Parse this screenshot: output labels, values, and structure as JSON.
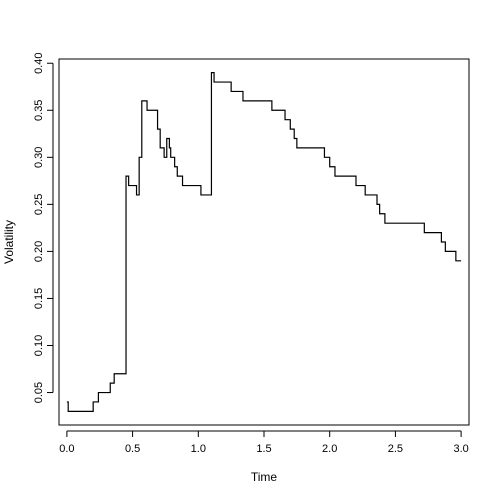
{
  "chart_data": {
    "type": "line",
    "title": "",
    "xlabel": "Time",
    "ylabel": "Volatility",
    "xlim": [
      -0.06,
      3.06
    ],
    "ylim": [
      0.0155,
      0.4045
    ],
    "xticks": [
      0.0,
      0.5,
      1.0,
      1.5,
      2.0,
      2.5,
      3.0
    ],
    "xtick_labels": [
      "0.0",
      "0.5",
      "1.0",
      "1.5",
      "2.0",
      "2.5",
      "3.0"
    ],
    "yticks": [
      0.05,
      0.1,
      0.15,
      0.2,
      0.25,
      0.3,
      0.35,
      0.4
    ],
    "ytick_labels": [
      "0.05",
      "0.10",
      "0.15",
      "0.20",
      "0.25",
      "0.30",
      "0.35",
      "0.40"
    ],
    "grid": false,
    "legend": "none",
    "series": [
      {
        "style": "step",
        "color": "#000000",
        "x": [
          0.0,
          0.01,
          0.2,
          0.24,
          0.33,
          0.36,
          0.45,
          0.47,
          0.5,
          0.53,
          0.55,
          0.57,
          0.59,
          0.61,
          0.64,
          0.69,
          0.71,
          0.74,
          0.76,
          0.78,
          0.79,
          0.8,
          0.82,
          0.84,
          0.86,
          0.88,
          0.92,
          1.02,
          1.1,
          1.12,
          1.15,
          1.25,
          1.34,
          1.56,
          1.66,
          1.7,
          1.73,
          1.75,
          1.78,
          1.96,
          2.0,
          2.04,
          2.11,
          2.2,
          2.23,
          2.27,
          2.31,
          2.36,
          2.38,
          2.42,
          2.55,
          2.72,
          2.82,
          2.85,
          2.87,
          2.88,
          2.92,
          2.96,
          3.0
        ],
        "y": [
          0.04,
          0.03,
          0.04,
          0.05,
          0.06,
          0.07,
          0.28,
          0.27,
          0.27,
          0.26,
          0.3,
          0.36,
          0.36,
          0.35,
          0.35,
          0.33,
          0.31,
          0.3,
          0.32,
          0.31,
          0.3,
          0.3,
          0.29,
          0.28,
          0.28,
          0.27,
          0.27,
          0.26,
          0.39,
          0.38,
          0.38,
          0.37,
          0.36,
          0.35,
          0.34,
          0.33,
          0.32,
          0.31,
          0.31,
          0.3,
          0.29,
          0.28,
          0.28,
          0.27,
          0.27,
          0.26,
          0.26,
          0.25,
          0.24,
          0.23,
          0.23,
          0.22,
          0.22,
          0.21,
          0.21,
          0.2,
          0.2,
          0.19,
          0.19
        ]
      }
    ]
  }
}
